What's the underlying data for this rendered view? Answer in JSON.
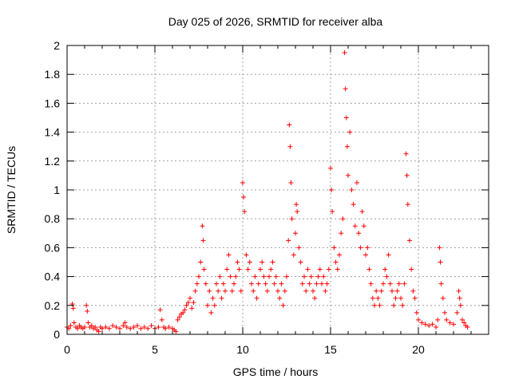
{
  "chart_data": {
    "type": "scatter",
    "title": "Day 025 of 2026, SRMTID for receiver alba",
    "xlabel": "GPS time / hours",
    "ylabel": "SRMTID / TECUs",
    "xlim": [
      0,
      24
    ],
    "ylim": [
      0,
      2
    ],
    "grid": true,
    "marker": "+",
    "x_ticks": [
      {
        "value": 0,
        "label": "0"
      },
      {
        "value": 5,
        "label": "5"
      },
      {
        "value": 10,
        "label": "10"
      },
      {
        "value": 15,
        "label": "15"
      },
      {
        "value": 20,
        "label": "20"
      }
    ],
    "y_ticks": [
      {
        "value": 0,
        "label": "0"
      },
      {
        "value": 0.2,
        "label": "0.2"
      },
      {
        "value": 0.4,
        "label": "0.4"
      },
      {
        "value": 0.6,
        "label": "0.6"
      },
      {
        "value": 0.8,
        "label": "0.8"
      },
      {
        "value": 1,
        "label": "1"
      },
      {
        "value": 1.2,
        "label": "1.2"
      },
      {
        "value": 1.4,
        "label": "1.4"
      },
      {
        "value": 1.6,
        "label": "1.6"
      },
      {
        "value": 1.8,
        "label": "1.8"
      },
      {
        "value": 2,
        "label": "2"
      }
    ],
    "series": [
      {
        "name": "SRMTID",
        "color": "#ff0000",
        "points": [
          [
            0.0,
            0.05
          ],
          [
            0.1,
            0.04
          ],
          [
            0.2,
            0.06
          ],
          [
            0.3,
            0.21
          ],
          [
            0.35,
            0.18
          ],
          [
            0.4,
            0.08
          ],
          [
            0.5,
            0.05
          ],
          [
            0.6,
            0.04
          ],
          [
            0.7,
            0.06
          ],
          [
            0.8,
            0.05
          ],
          [
            0.9,
            0.04
          ],
          [
            1.0,
            0.05
          ],
          [
            1.1,
            0.2
          ],
          [
            1.15,
            0.16
          ],
          [
            1.2,
            0.08
          ],
          [
            1.3,
            0.05
          ],
          [
            1.4,
            0.06
          ],
          [
            1.5,
            0.04
          ],
          [
            1.6,
            0.05
          ],
          [
            1.7,
            0.03
          ],
          [
            1.8,
            0.02
          ],
          [
            1.9,
            0.05
          ],
          [
            2.0,
            0.04
          ],
          [
            2.2,
            0.05
          ],
          [
            2.4,
            0.04
          ],
          [
            2.6,
            0.06
          ],
          [
            2.8,
            0.05
          ],
          [
            3.0,
            0.04
          ],
          [
            3.2,
            0.06
          ],
          [
            3.3,
            0.08
          ],
          [
            3.4,
            0.05
          ],
          [
            3.6,
            0.04
          ],
          [
            3.8,
            0.05
          ],
          [
            4.0,
            0.06
          ],
          [
            4.2,
            0.04
          ],
          [
            4.4,
            0.05
          ],
          [
            4.6,
            0.04
          ],
          [
            4.8,
            0.06
          ],
          [
            5.0,
            0.04
          ],
          [
            5.2,
            0.05
          ],
          [
            5.3,
            0.17
          ],
          [
            5.4,
            0.1
          ],
          [
            5.5,
            0.05
          ],
          [
            5.6,
            0.04
          ],
          [
            5.8,
            0.05
          ],
          [
            6.0,
            0.04
          ],
          [
            6.1,
            0.03
          ],
          [
            6.2,
            0.02
          ],
          [
            6.3,
            0.1
          ],
          [
            6.4,
            0.12
          ],
          [
            6.5,
            0.14
          ],
          [
            6.6,
            0.15
          ],
          [
            6.7,
            0.17
          ],
          [
            6.8,
            0.2
          ],
          [
            6.9,
            0.22
          ],
          [
            7.0,
            0.25
          ],
          [
            7.1,
            0.18
          ],
          [
            7.2,
            0.22
          ],
          [
            7.3,
            0.3
          ],
          [
            7.4,
            0.35
          ],
          [
            7.5,
            0.4
          ],
          [
            7.6,
            0.5
          ],
          [
            7.7,
            0.75
          ],
          [
            7.75,
            0.65
          ],
          [
            7.8,
            0.45
          ],
          [
            7.9,
            0.35
          ],
          [
            8.0,
            0.2
          ],
          [
            8.1,
            0.3
          ],
          [
            8.2,
            0.15
          ],
          [
            8.3,
            0.25
          ],
          [
            8.4,
            0.2
          ],
          [
            8.5,
            0.35
          ],
          [
            8.6,
            0.3
          ],
          [
            8.7,
            0.4
          ],
          [
            8.8,
            0.25
          ],
          [
            8.9,
            0.35
          ],
          [
            9.0,
            0.3
          ],
          [
            9.1,
            0.45
          ],
          [
            9.2,
            0.55
          ],
          [
            9.3,
            0.4
          ],
          [
            9.4,
            0.3
          ],
          [
            9.5,
            0.35
          ],
          [
            9.6,
            0.4
          ],
          [
            9.7,
            0.5
          ],
          [
            9.8,
            0.45
          ],
          [
            9.9,
            0.3
          ],
          [
            10.0,
            1.05
          ],
          [
            10.05,
            0.95
          ],
          [
            10.1,
            0.85
          ],
          [
            10.2,
            0.55
          ],
          [
            10.3,
            0.45
          ],
          [
            10.4,
            0.5
          ],
          [
            10.5,
            0.35
          ],
          [
            10.6,
            0.3
          ],
          [
            10.7,
            0.4
          ],
          [
            10.8,
            0.25
          ],
          [
            10.9,
            0.35
          ],
          [
            11.0,
            0.45
          ],
          [
            11.1,
            0.5
          ],
          [
            11.2,
            0.4
          ],
          [
            11.3,
            0.35
          ],
          [
            11.4,
            0.3
          ],
          [
            11.5,
            0.4
          ],
          [
            11.6,
            0.45
          ],
          [
            11.7,
            0.5
          ],
          [
            11.8,
            0.35
          ],
          [
            11.9,
            0.4
          ],
          [
            12.0,
            0.3
          ],
          [
            12.1,
            0.25
          ],
          [
            12.2,
            0.35
          ],
          [
            12.3,
            0.2
          ],
          [
            12.4,
            0.3
          ],
          [
            12.5,
            0.4
          ],
          [
            12.6,
            0.65
          ],
          [
            12.65,
            1.45
          ],
          [
            12.7,
            1.3
          ],
          [
            12.75,
            1.05
          ],
          [
            12.8,
            0.8
          ],
          [
            12.9,
            0.55
          ],
          [
            13.0,
            0.7
          ],
          [
            13.05,
            0.9
          ],
          [
            13.1,
            0.85
          ],
          [
            13.2,
            0.6
          ],
          [
            13.3,
            0.5
          ],
          [
            13.4,
            0.35
          ],
          [
            13.5,
            0.4
          ],
          [
            13.6,
            0.3
          ],
          [
            13.7,
            0.45
          ],
          [
            13.8,
            0.35
          ],
          [
            13.9,
            0.4
          ],
          [
            14.0,
            0.3
          ],
          [
            14.1,
            0.25
          ],
          [
            14.2,
            0.35
          ],
          [
            14.3,
            0.4
          ],
          [
            14.4,
            0.45
          ],
          [
            14.5,
            0.35
          ],
          [
            14.6,
            0.4
          ],
          [
            14.7,
            0.3
          ],
          [
            14.8,
            0.35
          ],
          [
            14.9,
            0.45
          ],
          [
            15.0,
            1.15
          ],
          [
            15.05,
            1.0
          ],
          [
            15.1,
            0.85
          ],
          [
            15.2,
            0.6
          ],
          [
            15.3,
            0.5
          ],
          [
            15.4,
            0.45
          ],
          [
            15.5,
            0.55
          ],
          [
            15.6,
            0.7
          ],
          [
            15.7,
            0.8
          ],
          [
            15.8,
            1.95
          ],
          [
            15.85,
            1.7
          ],
          [
            15.9,
            1.5
          ],
          [
            15.95,
            1.3
          ],
          [
            16.0,
            1.1
          ],
          [
            16.1,
            1.4
          ],
          [
            16.2,
            1.0
          ],
          [
            16.3,
            0.9
          ],
          [
            16.4,
            0.75
          ],
          [
            16.5,
            1.05
          ],
          [
            16.6,
            0.7
          ],
          [
            16.7,
            0.6
          ],
          [
            16.8,
            0.85
          ],
          [
            16.9,
            0.75
          ],
          [
            17.0,
            0.55
          ],
          [
            17.1,
            0.6
          ],
          [
            17.2,
            0.45
          ],
          [
            17.3,
            0.35
          ],
          [
            17.4,
            0.25
          ],
          [
            17.5,
            0.2
          ],
          [
            17.6,
            0.3
          ],
          [
            17.7,
            0.25
          ],
          [
            17.8,
            0.2
          ],
          [
            17.9,
            0.3
          ],
          [
            18.0,
            0.35
          ],
          [
            18.1,
            0.45
          ],
          [
            18.2,
            0.4
          ],
          [
            18.3,
            0.55
          ],
          [
            18.4,
            0.35
          ],
          [
            18.5,
            0.3
          ],
          [
            18.6,
            0.2
          ],
          [
            18.7,
            0.25
          ],
          [
            18.8,
            0.3
          ],
          [
            18.9,
            0.35
          ],
          [
            19.0,
            0.25
          ],
          [
            19.1,
            0.2
          ],
          [
            19.2,
            0.35
          ],
          [
            19.3,
            1.25
          ],
          [
            19.35,
            1.1
          ],
          [
            19.4,
            0.9
          ],
          [
            19.5,
            0.65
          ],
          [
            19.6,
            0.45
          ],
          [
            19.7,
            0.3
          ],
          [
            19.8,
            0.25
          ],
          [
            19.9,
            0.15
          ],
          [
            20.0,
            0.1
          ],
          [
            20.2,
            0.08
          ],
          [
            20.4,
            0.07
          ],
          [
            20.6,
            0.06
          ],
          [
            20.8,
            0.07
          ],
          [
            21.0,
            0.05
          ],
          [
            21.1,
            0.1
          ],
          [
            21.2,
            0.6
          ],
          [
            21.25,
            0.5
          ],
          [
            21.3,
            0.35
          ],
          [
            21.4,
            0.25
          ],
          [
            21.5,
            0.15
          ],
          [
            21.6,
            0.1
          ],
          [
            21.8,
            0.08
          ],
          [
            22.0,
            0.07
          ],
          [
            22.2,
            0.15
          ],
          [
            22.3,
            0.3
          ],
          [
            22.35,
            0.25
          ],
          [
            22.4,
            0.2
          ],
          [
            22.5,
            0.1
          ],
          [
            22.6,
            0.08
          ],
          [
            22.7,
            0.06
          ],
          [
            22.8,
            0.05
          ]
        ]
      }
    ]
  }
}
